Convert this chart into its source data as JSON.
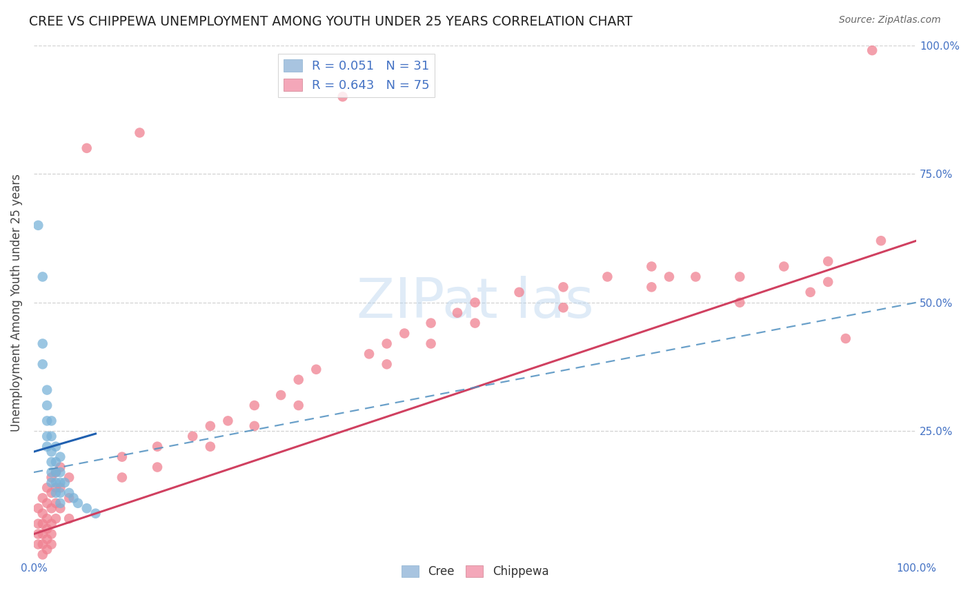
{
  "title": "CREE VS CHIPPEWA UNEMPLOYMENT AMONG YOUTH UNDER 25 YEARS CORRELATION CHART",
  "source": "Source: ZipAtlas.com",
  "ylabel": "Unemployment Among Youth under 25 years",
  "cree_color": "#7ab3d9",
  "chippewa_color": "#f08090",
  "cree_line_color": "#2060b0",
  "chippewa_line_color": "#d04060",
  "cree_dash_color": "#5090c0",
  "background_color": "#ffffff",
  "grid_color": "#cccccc",
  "cree_points": [
    [
      0.005,
      0.65
    ],
    [
      0.01,
      0.55
    ],
    [
      0.01,
      0.42
    ],
    [
      0.01,
      0.38
    ],
    [
      0.015,
      0.33
    ],
    [
      0.015,
      0.3
    ],
    [
      0.015,
      0.27
    ],
    [
      0.015,
      0.24
    ],
    [
      0.015,
      0.22
    ],
    [
      0.02,
      0.27
    ],
    [
      0.02,
      0.24
    ],
    [
      0.02,
      0.21
    ],
    [
      0.02,
      0.19
    ],
    [
      0.02,
      0.17
    ],
    [
      0.02,
      0.15
    ],
    [
      0.025,
      0.22
    ],
    [
      0.025,
      0.19
    ],
    [
      0.025,
      0.17
    ],
    [
      0.025,
      0.15
    ],
    [
      0.025,
      0.13
    ],
    [
      0.03,
      0.2
    ],
    [
      0.03,
      0.17
    ],
    [
      0.03,
      0.15
    ],
    [
      0.03,
      0.13
    ],
    [
      0.03,
      0.11
    ],
    [
      0.035,
      0.15
    ],
    [
      0.04,
      0.13
    ],
    [
      0.045,
      0.12
    ],
    [
      0.05,
      0.11
    ],
    [
      0.06,
      0.1
    ],
    [
      0.07,
      0.09
    ]
  ],
  "chippewa_points": [
    [
      0.005,
      0.1
    ],
    [
      0.005,
      0.07
    ],
    [
      0.005,
      0.05
    ],
    [
      0.005,
      0.03
    ],
    [
      0.01,
      0.12
    ],
    [
      0.01,
      0.09
    ],
    [
      0.01,
      0.07
    ],
    [
      0.01,
      0.05
    ],
    [
      0.01,
      0.03
    ],
    [
      0.01,
      0.01
    ],
    [
      0.015,
      0.14
    ],
    [
      0.015,
      0.11
    ],
    [
      0.015,
      0.08
    ],
    [
      0.015,
      0.06
    ],
    [
      0.015,
      0.04
    ],
    [
      0.015,
      0.02
    ],
    [
      0.02,
      0.16
    ],
    [
      0.02,
      0.13
    ],
    [
      0.02,
      0.1
    ],
    [
      0.02,
      0.07
    ],
    [
      0.02,
      0.05
    ],
    [
      0.02,
      0.03
    ],
    [
      0.025,
      0.17
    ],
    [
      0.025,
      0.14
    ],
    [
      0.025,
      0.11
    ],
    [
      0.025,
      0.08
    ],
    [
      0.03,
      0.18
    ],
    [
      0.03,
      0.14
    ],
    [
      0.03,
      0.1
    ],
    [
      0.04,
      0.16
    ],
    [
      0.04,
      0.12
    ],
    [
      0.04,
      0.08
    ],
    [
      0.06,
      0.8
    ],
    [
      0.1,
      0.2
    ],
    [
      0.1,
      0.16
    ],
    [
      0.12,
      0.83
    ],
    [
      0.14,
      0.22
    ],
    [
      0.14,
      0.18
    ],
    [
      0.18,
      0.24
    ],
    [
      0.2,
      0.26
    ],
    [
      0.2,
      0.22
    ],
    [
      0.22,
      0.27
    ],
    [
      0.25,
      0.3
    ],
    [
      0.25,
      0.26
    ],
    [
      0.28,
      0.32
    ],
    [
      0.3,
      0.35
    ],
    [
      0.3,
      0.3
    ],
    [
      0.32,
      0.37
    ],
    [
      0.35,
      0.9
    ],
    [
      0.38,
      0.4
    ],
    [
      0.4,
      0.42
    ],
    [
      0.4,
      0.38
    ],
    [
      0.42,
      0.44
    ],
    [
      0.45,
      0.46
    ],
    [
      0.45,
      0.42
    ],
    [
      0.48,
      0.48
    ],
    [
      0.5,
      0.5
    ],
    [
      0.5,
      0.46
    ],
    [
      0.55,
      0.52
    ],
    [
      0.6,
      0.53
    ],
    [
      0.6,
      0.49
    ],
    [
      0.65,
      0.55
    ],
    [
      0.7,
      0.57
    ],
    [
      0.7,
      0.53
    ],
    [
      0.72,
      0.55
    ],
    [
      0.75,
      0.55
    ],
    [
      0.8,
      0.55
    ],
    [
      0.8,
      0.5
    ],
    [
      0.85,
      0.57
    ],
    [
      0.88,
      0.52
    ],
    [
      0.9,
      0.58
    ],
    [
      0.9,
      0.54
    ],
    [
      0.92,
      0.43
    ],
    [
      0.95,
      0.99
    ],
    [
      0.96,
      0.62
    ]
  ],
  "xlim": [
    0.0,
    1.0
  ],
  "ylim": [
    0.0,
    1.0
  ],
  "cree_line": [
    [
      0.0,
      0.21
    ],
    [
      0.07,
      0.245
    ]
  ],
  "chippewa_line": [
    [
      0.0,
      0.05
    ],
    [
      1.0,
      0.62
    ]
  ],
  "cree_dash_line": [
    [
      0.0,
      0.17
    ],
    [
      1.0,
      0.5
    ]
  ]
}
